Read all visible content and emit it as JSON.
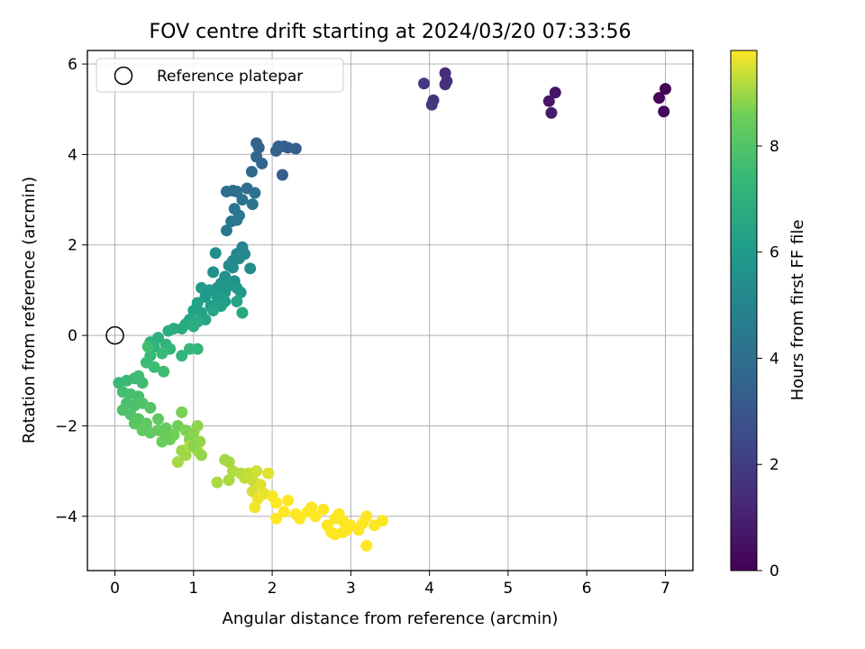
{
  "chart_data": {
    "type": "scatter",
    "title": "FOV centre drift starting at 2024/03/20 07:33:56",
    "xlabel": "Angular distance from reference (arcmin)",
    "ylabel": "Rotation from reference (arcmin)",
    "xlim": [
      -0.35,
      7.35
    ],
    "ylim": [
      -5.2,
      6.3
    ],
    "xticks": [
      0,
      1,
      2,
      3,
      4,
      5,
      6,
      7
    ],
    "yticks": [
      -4,
      -2,
      0,
      2,
      4,
      6
    ],
    "grid": true,
    "legend": {
      "position": "top-left",
      "entries": [
        "Reference platepar"
      ]
    },
    "reference_point": {
      "x": 0,
      "y": 0
    },
    "colorbar": {
      "label": "Hours from first FF file",
      "colormap": "viridis",
      "range": [
        0,
        9.8
      ],
      "ticks": [
        0,
        2,
        4,
        6,
        8
      ]
    },
    "points": [
      [
        7.0,
        5.45,
        0.05
      ],
      [
        6.92,
        5.25,
        0.15
      ],
      [
        6.98,
        4.95,
        0.25
      ],
      [
        5.6,
        5.37,
        0.6
      ],
      [
        5.52,
        5.18,
        0.7
      ],
      [
        5.55,
        4.92,
        0.8
      ],
      [
        4.2,
        5.8,
        1.4
      ],
      [
        4.2,
        5.55,
        1.5
      ],
      [
        4.22,
        5.62,
        1.6
      ],
      [
        4.05,
        5.2,
        1.7
      ],
      [
        4.03,
        5.1,
        1.8
      ],
      [
        3.93,
        5.57,
        1.9
      ],
      [
        2.3,
        4.13,
        3.2
      ],
      [
        2.13,
        3.55,
        3.25
      ],
      [
        2.2,
        4.15,
        3.3
      ],
      [
        2.15,
        4.18,
        3.35
      ],
      [
        2.08,
        4.18,
        3.4
      ],
      [
        2.05,
        4.08,
        3.45
      ],
      [
        1.8,
        4.25,
        3.5
      ],
      [
        1.83,
        4.15,
        3.55
      ],
      [
        1.87,
        3.8,
        3.6
      ],
      [
        1.8,
        3.95,
        3.65
      ],
      [
        1.74,
        3.62,
        3.7
      ],
      [
        1.5,
        3.2,
        3.9
      ],
      [
        1.55,
        3.18,
        3.95
      ],
      [
        1.42,
        3.18,
        4.0
      ],
      [
        1.68,
        3.25,
        4.05
      ],
      [
        1.78,
        3.15,
        4.1
      ],
      [
        1.62,
        3.0,
        4.15
      ],
      [
        1.75,
        2.9,
        4.2
      ],
      [
        1.52,
        2.8,
        4.25
      ],
      [
        1.58,
        2.65,
        4.3
      ],
      [
        1.48,
        2.52,
        4.35
      ],
      [
        1.55,
        2.55,
        4.4
      ],
      [
        1.42,
        2.32,
        4.45
      ],
      [
        1.62,
        1.95,
        5.0
      ],
      [
        1.6,
        1.85,
        5.05
      ],
      [
        1.55,
        1.8,
        5.1
      ],
      [
        1.65,
        1.8,
        5.15
      ],
      [
        1.5,
        1.65,
        5.2
      ],
      [
        1.58,
        1.7,
        5.25
      ],
      [
        1.45,
        1.55,
        5.3
      ],
      [
        1.5,
        1.5,
        5.35
      ],
      [
        1.72,
        1.48,
        5.4
      ],
      [
        1.28,
        1.82,
        5.45
      ],
      [
        1.4,
        1.3,
        5.5
      ],
      [
        1.52,
        1.2,
        5.55
      ],
      [
        1.25,
        1.4,
        5.6
      ],
      [
        1.35,
        1.15,
        5.65
      ],
      [
        1.45,
        1.1,
        5.7
      ],
      [
        1.3,
        1.05,
        5.75
      ],
      [
        1.4,
        0.95,
        5.8
      ],
      [
        1.55,
        1.05,
        5.85
      ],
      [
        1.6,
        0.95,
        5.9
      ],
      [
        1.2,
        1.0,
        5.95
      ],
      [
        1.1,
        1.05,
        6.0
      ],
      [
        1.15,
        0.85,
        6.05
      ],
      [
        1.3,
        0.85,
        6.1
      ],
      [
        1.4,
        0.75,
        6.15
      ],
      [
        1.22,
        0.65,
        6.2
      ],
      [
        1.35,
        0.65,
        6.25
      ],
      [
        1.05,
        0.72,
        6.3
      ],
      [
        1.0,
        0.55,
        6.35
      ],
      [
        1.1,
        0.5,
        6.4
      ],
      [
        1.15,
        0.35,
        6.45
      ],
      [
        1.25,
        0.55,
        6.5
      ],
      [
        0.95,
        0.35,
        6.55
      ],
      [
        1.05,
        0.3,
        6.6
      ],
      [
        0.9,
        0.25,
        6.65
      ],
      [
        0.85,
        0.15,
        6.7
      ],
      [
        0.75,
        0.15,
        6.75
      ],
      [
        0.68,
        0.1,
        6.8
      ],
      [
        1.0,
        0.2,
        6.85
      ],
      [
        1.55,
        0.75,
        6.5
      ],
      [
        1.62,
        0.5,
        6.6
      ],
      [
        0.55,
        -0.05,
        7.0
      ],
      [
        0.45,
        -0.15,
        7.05
      ],
      [
        0.5,
        -0.25,
        7.1
      ],
      [
        0.65,
        -0.2,
        7.15
      ],
      [
        0.7,
        -0.3,
        7.2
      ],
      [
        0.85,
        -0.45,
        7.25
      ],
      [
        0.95,
        -0.3,
        7.3
      ],
      [
        1.05,
        -0.3,
        7.35
      ],
      [
        0.45,
        -0.45,
        7.4
      ],
      [
        0.6,
        -0.4,
        7.45
      ],
      [
        0.4,
        -0.6,
        7.5
      ],
      [
        0.5,
        -0.7,
        7.55
      ],
      [
        0.62,
        -0.8,
        7.6
      ],
      [
        0.42,
        -0.25,
        7.65
      ],
      [
        0.05,
        -1.05,
        7.4
      ],
      [
        0.15,
        -1.0,
        7.45
      ],
      [
        0.25,
        -0.95,
        7.5
      ],
      [
        0.3,
        -0.9,
        7.55
      ],
      [
        0.35,
        -1.05,
        7.6
      ],
      [
        0.1,
        -1.25,
        7.65
      ],
      [
        0.2,
        -1.3,
        7.7
      ],
      [
        0.3,
        -1.35,
        7.75
      ],
      [
        0.15,
        -1.5,
        7.8
      ],
      [
        0.25,
        -1.55,
        7.85
      ],
      [
        0.1,
        -1.65,
        7.9
      ],
      [
        0.2,
        -1.75,
        7.95
      ],
      [
        0.35,
        -1.5,
        8.0
      ],
      [
        0.45,
        -1.6,
        8.05
      ],
      [
        0.3,
        -1.85,
        8.1
      ],
      [
        0.25,
        -1.95,
        8.15
      ],
      [
        0.4,
        -1.95,
        8.2
      ],
      [
        0.55,
        -1.85,
        8.25
      ],
      [
        0.45,
        -2.15,
        8.3
      ],
      [
        0.55,
        -2.1,
        8.35
      ],
      [
        0.65,
        -2.05,
        8.4
      ],
      [
        0.6,
        -2.35,
        8.45
      ],
      [
        0.7,
        -2.3,
        8.5
      ],
      [
        0.8,
        -2.0,
        8.55
      ],
      [
        0.75,
        -2.2,
        8.6
      ],
      [
        0.85,
        -1.7,
        8.65
      ],
      [
        0.9,
        -2.1,
        8.7
      ],
      [
        0.95,
        -2.3,
        8.75
      ],
      [
        1.0,
        -2.15,
        8.8
      ],
      [
        1.05,
        -2.0,
        8.85
      ],
      [
        1.08,
        -2.35,
        8.9
      ],
      [
        0.85,
        -2.55,
        8.95
      ],
      [
        0.9,
        -2.65,
        9.0
      ],
      [
        0.8,
        -2.8,
        9.05
      ],
      [
        1.05,
        -2.55,
        9.1
      ],
      [
        0.95,
        -2.45,
        9.15
      ],
      [
        1.1,
        -2.65,
        8.9
      ],
      [
        1.0,
        -2.45,
        8.8
      ],
      [
        0.35,
        -2.1,
        8.3
      ],
      [
        0.65,
        -2.25,
        8.45
      ],
      [
        1.4,
        -2.75,
        9.0
      ],
      [
        1.45,
        -2.8,
        9.05
      ],
      [
        1.3,
        -3.25,
        9.1
      ],
      [
        1.45,
        -3.2,
        9.1
      ],
      [
        1.5,
        -3.0,
        9.15
      ],
      [
        1.6,
        -3.05,
        9.2
      ],
      [
        1.65,
        -3.15,
        9.25
      ],
      [
        1.7,
        -3.05,
        9.3
      ],
      [
        1.75,
        -3.2,
        9.35
      ],
      [
        1.8,
        -3.0,
        9.4
      ],
      [
        1.75,
        -3.45,
        9.45
      ],
      [
        1.85,
        -3.3,
        9.5
      ],
      [
        1.95,
        -3.05,
        9.55
      ],
      [
        1.9,
        -3.5,
        9.6
      ],
      [
        1.82,
        -3.6,
        9.65
      ],
      [
        1.78,
        -3.8,
        9.7
      ],
      [
        2.0,
        -3.55,
        9.75
      ],
      [
        2.05,
        -3.7,
        9.8
      ],
      [
        2.05,
        -4.05,
        9.8
      ],
      [
        2.15,
        -3.9,
        9.8
      ],
      [
        2.2,
        -3.65,
        9.8
      ],
      [
        2.3,
        -3.95,
        9.8
      ],
      [
        2.35,
        -4.05,
        9.8
      ],
      [
        2.45,
        -3.9,
        9.8
      ],
      [
        2.5,
        -3.8,
        9.8
      ],
      [
        2.55,
        -4.0,
        9.8
      ],
      [
        2.65,
        -3.85,
        9.8
      ],
      [
        2.7,
        -4.2,
        9.8
      ],
      [
        2.75,
        -4.35,
        9.8
      ],
      [
        2.8,
        -4.05,
        9.8
      ],
      [
        2.85,
        -3.95,
        9.8
      ],
      [
        2.9,
        -4.1,
        9.8
      ],
      [
        2.95,
        -4.3,
        9.8
      ],
      [
        3.0,
        -4.2,
        9.8
      ],
      [
        3.1,
        -4.3,
        9.8
      ],
      [
        3.15,
        -4.15,
        9.8
      ],
      [
        3.2,
        -4.0,
        9.8
      ],
      [
        3.3,
        -4.2,
        9.8
      ],
      [
        3.4,
        -4.1,
        9.8
      ],
      [
        3.2,
        -4.65,
        9.8
      ],
      [
        2.8,
        -4.4,
        9.8
      ],
      [
        2.9,
        -4.35,
        9.8
      ]
    ]
  }
}
